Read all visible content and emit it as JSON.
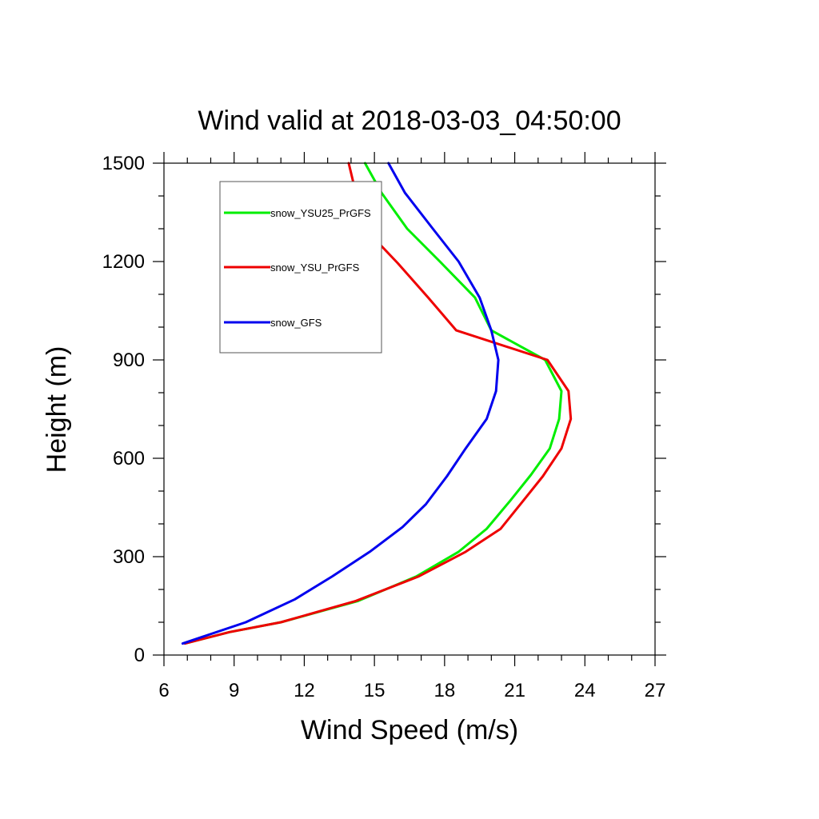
{
  "chart_data": {
    "type": "line",
    "title": "Wind valid at 2018-03-03_04:50:00",
    "xlabel": "Wind Speed (m/s)",
    "ylabel": "Height (m)",
    "xlim": [
      6,
      27
    ],
    "ylim": [
      0,
      1500
    ],
    "x_ticks": [
      "6",
      "9",
      "12",
      "15",
      "18",
      "21",
      "24",
      "27"
    ],
    "y_ticks": [
      "0",
      "300",
      "600",
      "900",
      "1200",
      "1500"
    ],
    "grid": false,
    "legend_position": "top-left",
    "series": [
      {
        "name": "snow_YSU25_PrGFS",
        "color": "#00ee00",
        "points": [
          [
            6.9,
            35
          ],
          [
            8.8,
            70
          ],
          [
            11.0,
            100
          ],
          [
            14.3,
            165
          ],
          [
            16.8,
            240
          ],
          [
            18.6,
            315
          ],
          [
            19.8,
            385
          ],
          [
            20.8,
            470
          ],
          [
            21.7,
            550
          ],
          [
            22.5,
            630
          ],
          [
            22.9,
            720
          ],
          [
            23.0,
            805
          ],
          [
            22.3,
            900
          ],
          [
            20.0,
            990
          ],
          [
            19.3,
            1090
          ],
          [
            17.8,
            1200
          ],
          [
            16.4,
            1300
          ],
          [
            15.3,
            1410
          ],
          [
            14.6,
            1500
          ]
        ]
      },
      {
        "name": "snow_YSU_PrGFS",
        "color": "#ee0000",
        "points": [
          [
            6.9,
            35
          ],
          [
            8.8,
            70
          ],
          [
            11.0,
            100
          ],
          [
            14.2,
            165
          ],
          [
            16.9,
            240
          ],
          [
            18.9,
            315
          ],
          [
            20.4,
            385
          ],
          [
            21.3,
            465
          ],
          [
            22.2,
            545
          ],
          [
            23.0,
            630
          ],
          [
            23.4,
            720
          ],
          [
            23.3,
            805
          ],
          [
            22.4,
            900
          ],
          [
            18.5,
            990
          ],
          [
            17.3,
            1090
          ],
          [
            16.0,
            1195
          ],
          [
            14.6,
            1300
          ],
          [
            14.2,
            1410
          ],
          [
            13.9,
            1500
          ]
        ]
      },
      {
        "name": "snow_GFS",
        "color": "#0000ee",
        "points": [
          [
            6.8,
            35
          ],
          [
            9.5,
            100
          ],
          [
            11.6,
            170
          ],
          [
            13.2,
            240
          ],
          [
            14.8,
            315
          ],
          [
            16.2,
            390
          ],
          [
            17.2,
            460
          ],
          [
            18.1,
            545
          ],
          [
            18.9,
            630
          ],
          [
            19.8,
            720
          ],
          [
            20.2,
            805
          ],
          [
            20.3,
            900
          ],
          [
            20.0,
            990
          ],
          [
            19.5,
            1090
          ],
          [
            18.6,
            1200
          ],
          [
            17.5,
            1300
          ],
          [
            16.3,
            1410
          ],
          [
            15.6,
            1500
          ]
        ]
      }
    ]
  }
}
